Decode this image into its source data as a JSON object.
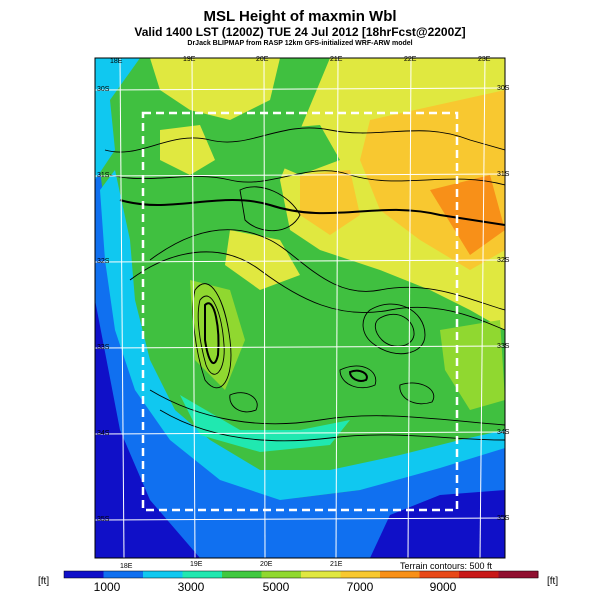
{
  "title": "MSL Height of maxmin Wbl",
  "subtitle": "Valid 1400 LST (1200Z) TUE 24 Jul 2012 [18hrFcst@2200Z]",
  "credits": "DrJack BLIPMAP from RASP 12km GFS-initialized WRF-ARW model",
  "map": {
    "lon_labels_top": [
      "18E",
      "19E",
      "20E",
      "21E",
      "22E",
      "23E"
    ],
    "lon_labels_bottom": [
      "18E",
      "19E",
      "20E",
      "21E"
    ],
    "lat_labels_right": [
      "30S",
      "31S",
      "32S",
      "33S",
      "34S",
      "35S"
    ],
    "lat_labels_left": [
      "30S",
      "31S",
      "32S",
      "33S",
      "34S",
      "35S"
    ],
    "terrain_note": "Terrain contours: 500 ft"
  },
  "colorbar": {
    "unit_left": "[ft]",
    "unit_right": "[ft]",
    "labels": [
      "1000",
      "3000",
      "5000",
      "7000",
      "9000"
    ],
    "colors": [
      "#1010c8",
      "#1070f0",
      "#10c8f0",
      "#20e8b0",
      "#40c840",
      "#90d830",
      "#e0e840",
      "#f8c830",
      "#f89018",
      "#e84818",
      "#c81818",
      "#901030"
    ]
  }
}
